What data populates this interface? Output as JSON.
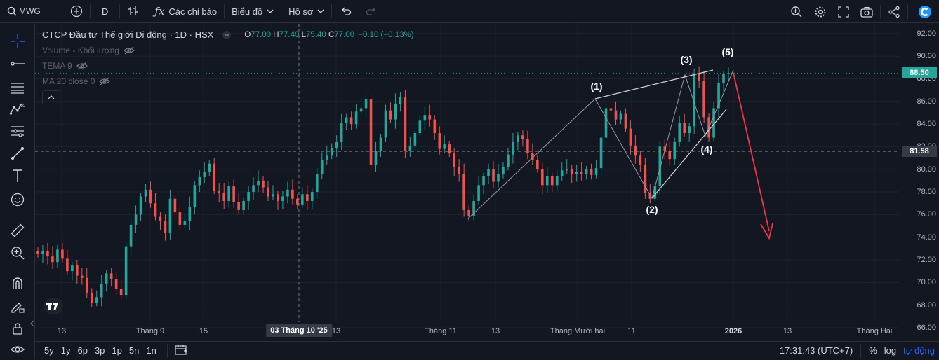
{
  "toolbar": {
    "symbol": "MWG",
    "interval": "D",
    "indicators_label": "Các chỉ báo",
    "chart_type_label": "Biểu đồ",
    "profile_label": "Hồ sơ"
  },
  "legend": {
    "title": "CTCP Đầu tư Thế giới Di động · 1D · HSX",
    "o_label": "O",
    "o": "77.00",
    "h_label": "H",
    "h": "77.40",
    "l_label": "L",
    "l": "75.40",
    "c_label": "C",
    "c": "77.00",
    "change": "−0.10 (−0.13%)",
    "volume": "Volume - Khối lượng",
    "tema": "TEMA 9",
    "ma": "MA 20 close 0"
  },
  "price_axis": {
    "labels": [
      "92.00",
      "90.00",
      "88.00",
      "86.00",
      "84.00",
      "82.00",
      "80.00",
      "78.00",
      "76.00",
      "74.00",
      "72.00",
      "70.00",
      "68.00",
      "66.00"
    ],
    "last_price_tag": "88.50",
    "crosshair_tag": "81.58"
  },
  "time_axis": {
    "labels": [
      "13",
      "Tháng 9",
      "15",
      "13",
      "Tháng 11",
      "13",
      "Tháng Mười hai",
      "11",
      "2026",
      "13",
      "Tháng Hai"
    ],
    "crosshair_label": "03 Tháng 10 '25"
  },
  "wave_labels": [
    "(1)",
    "(2)",
    "(3)",
    "(4)",
    "(5)"
  ],
  "bottom": {
    "ranges": [
      "5y",
      "1y",
      "6p",
      "3p",
      "1p",
      "5n",
      "1n"
    ],
    "clock": "17:31:43 (UTC+7)",
    "percent": "%",
    "log": "log",
    "auto": "tự động"
  },
  "colors": {
    "up": "#26a69a",
    "down": "#ef5350",
    "bg": "#131722",
    "accent": "#2962ff",
    "arrow": "#f23645"
  },
  "chart_data": {
    "type": "candlestick",
    "ylim": [
      66,
      92
    ],
    "closes": [
      72.5,
      72.8,
      72.3,
      71.8,
      72.9,
      72.1,
      71.0,
      71.5,
      70.6,
      70.4,
      69.1,
      68.2,
      68.7,
      69.9,
      70.8,
      70.3,
      69.4,
      68.9,
      73.2,
      75.1,
      76.0,
      77.6,
      78.2,
      77.0,
      75.8,
      75.4,
      74.4,
      77.4,
      76.2,
      75.1,
      75.4,
      76.7,
      78.6,
      79.3,
      79.8,
      80.5,
      78.1,
      77.9,
      77.2,
      78.5,
      77.1,
      76.4,
      77.2,
      78.0,
      78.6,
      79.0,
      78.4,
      77.6,
      77.8,
      77.2,
      77.6,
      78.2,
      77.4,
      76.9,
      77.8,
      77.2,
      78.0,
      79.6,
      80.8,
      81.2,
      81.9,
      82.4,
      84.1,
      84.6,
      84.0,
      85.1,
      85.4,
      86.2,
      80.4,
      81.6,
      82.8,
      85.2,
      84.4,
      85.8,
      86.4,
      81.6,
      82.1,
      83.2,
      84.3,
      84.8,
      84.4,
      83.2,
      81.8,
      82.2,
      81.4,
      80.2,
      79.6,
      76.4,
      75.9,
      77.2,
      78.6,
      79.4,
      80.0,
      78.9,
      79.6,
      80.2,
      81.3,
      82.4,
      83.0,
      82.7,
      81.4,
      80.8,
      80.0,
      78.6,
      79.4,
      78.6,
      79.4,
      79.9,
      80.0,
      79.6,
      79.8,
      79.6,
      80.0,
      79.5,
      80.1,
      82.8,
      85.4,
      85.2,
      84.4,
      84.9,
      83.6,
      82.1,
      81.2,
      80.4,
      77.9,
      77.4,
      78.5,
      82.0,
      81.6,
      80.9,
      82.4,
      84.1,
      83.2,
      83.8,
      88.4,
      87.8,
      84.6,
      82.8,
      85.4,
      87.6,
      88.4,
      88.5
    ]
  }
}
